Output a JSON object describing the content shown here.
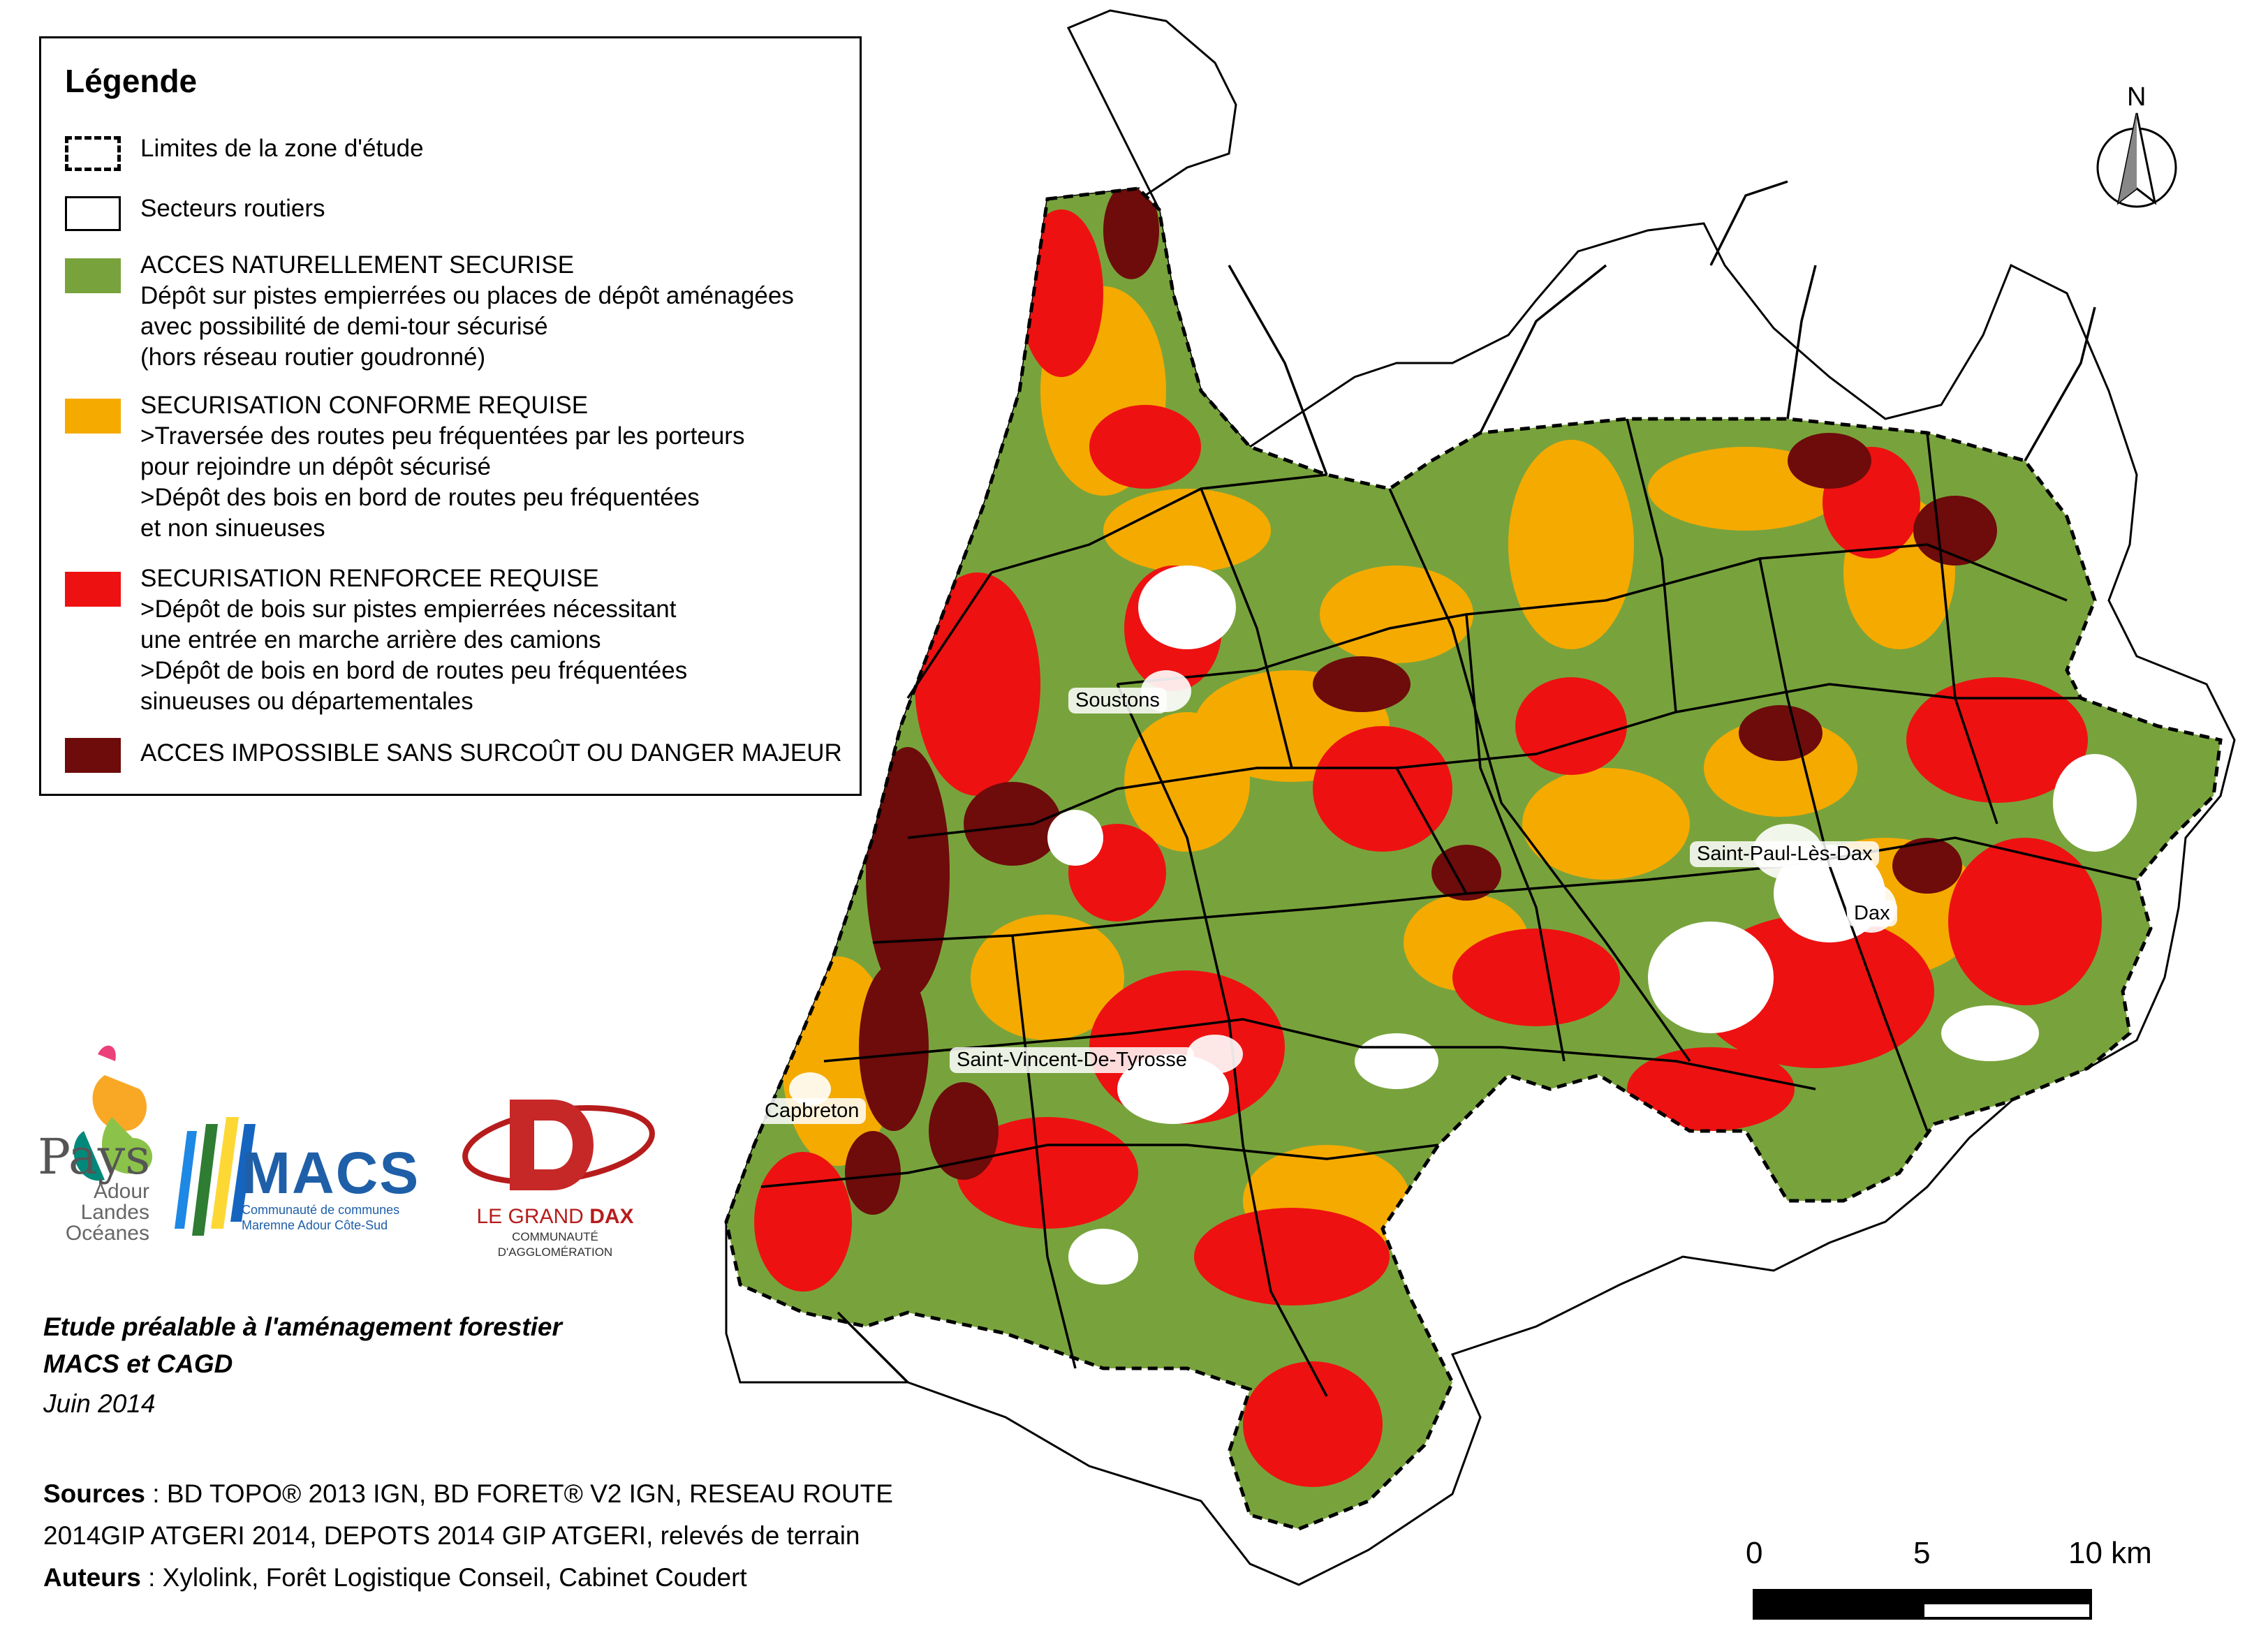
{
  "legend": {
    "title": "Légende",
    "items": [
      {
        "lines": [
          "Limites de la zone d'étude"
        ],
        "swatch": "dashed",
        "color": "#ffffff"
      },
      {
        "lines": [
          "Secteurs routiers"
        ],
        "swatch": "solid",
        "color": "#ffffff"
      },
      {
        "lines": [
          "ACCES NATURELLEMENT SECURISE",
          "Dépôt sur pistes empierrées ou places de dépôt aménagées",
          "avec possibilité de demi-tour sécurisé",
          "(hors réseau routier goudronné)"
        ],
        "swatch": "fill",
        "color": "#78a33c"
      },
      {
        "lines": [
          "SECURISATION CONFORME REQUISE",
          " >Traversée des routes peu fréquentées par les porteurs",
          "pour rejoindre un dépôt sécurisé",
          " >Dépôt des bois en bord de routes peu fréquentées",
          "et non sinueuses"
        ],
        "swatch": "fill",
        "color": "#f5aa00"
      },
      {
        "lines": [
          "SECURISATION RENFORCEE REQUISE",
          " >Dépôt de bois sur pistes empierrées nécessitant",
          " une entrée en marche arrière des camions",
          " >Dépôt de bois en bord de routes peu fréquentées",
          " sinueuses ou départementales"
        ],
        "swatch": "fill",
        "color": "#ee1111"
      },
      {
        "lines": [
          "ACCES IMPOSSIBLE SANS SURCOÛT OU DANGER MAJEUR"
        ],
        "swatch": "fill",
        "color": "#6e0b0b"
      }
    ]
  },
  "north_label": "N",
  "towns": [
    {
      "name": "Soustons"
    },
    {
      "name": "Saint-Paul-Lès-Dax"
    },
    {
      "name": "Dax"
    },
    {
      "name": "Saint-Vincent-De-Tyrosse"
    },
    {
      "name": "Capbreton"
    }
  ],
  "logos": {
    "pays": {
      "line1": "Pays",
      "line2": "Adour",
      "line3": "Landes",
      "line4": "Océanes"
    },
    "macs": {
      "name": "MACS",
      "sub1": "Communauté de communes",
      "sub2": "Maremne Adour Côte-Sud"
    },
    "dax": {
      "name1": "LE GRAND",
      "name2": "DAX",
      "sub1": "COMMUNAUTÉ",
      "sub2": "D'AGGLOMÉRATION"
    }
  },
  "study": {
    "line1": "Etude préalable à l'aménagement forestier",
    "line2": "MACS et CAGD",
    "line3": "Juin 2014"
  },
  "sources": {
    "label": "Sources",
    "line1": " : BD TOPO® 2013 IGN, BD FORET® V2 IGN, RESEAU ROUTE",
    "line2": "2014GIP ATGERI 2014, DEPOTS 2014 GIP ATGERI, relevés de terrain",
    "authors_label": "Auteurs",
    "authors": " : Xylolink, Forêt Logistique Conseil, Cabinet Coudert"
  },
  "scale": {
    "labels": [
      "0",
      "5",
      "10 km"
    ]
  },
  "colors": {
    "green": "#78a33c",
    "orange": "#f5aa00",
    "red": "#ee1111",
    "darkred": "#6e0b0b"
  }
}
